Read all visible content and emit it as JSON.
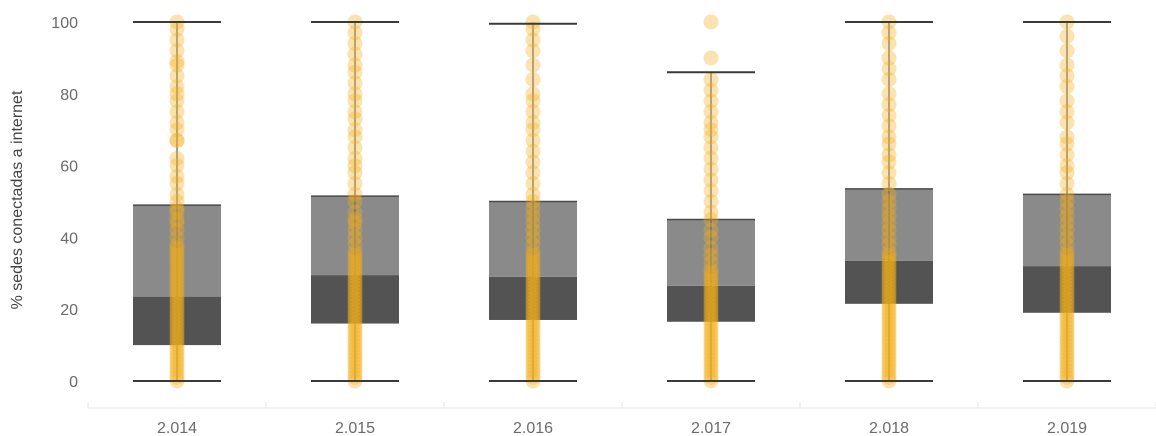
{
  "chart_data": {
    "type": "boxplot",
    "title": "",
    "xlabel": "",
    "ylabel": "% sedes conectadas a internet",
    "ylim": [
      0,
      100
    ],
    "yticks": [
      0,
      20,
      40,
      60,
      80,
      100
    ],
    "grid": false,
    "legend": "none",
    "colors": {
      "points": "#f2b01e",
      "upper_box": "#8a8a8a",
      "lower_box": "#535353",
      "whisker": "#3a3a3a",
      "axis_line": "#e6e6e6"
    },
    "categories": [
      "2.014",
      "2.015",
      "2.016",
      "2.017",
      "2.018",
      "2.019"
    ],
    "boxes": [
      {
        "category": "2.014",
        "whisker_low": 0,
        "q1": 10,
        "median": 23.5,
        "q3": 49,
        "whisker_high": 100
      },
      {
        "category": "2.015",
        "whisker_low": 0,
        "q1": 16,
        "median": 29.5,
        "q3": 51.5,
        "whisker_high": 100
      },
      {
        "category": "2.016",
        "whisker_low": 0,
        "q1": 17,
        "median": 29,
        "q3": 50,
        "whisker_high": 99.5
      },
      {
        "category": "2.017",
        "whisker_low": 0,
        "q1": 16.5,
        "median": 26.5,
        "q3": 45,
        "whisker_high": 86
      },
      {
        "category": "2.018",
        "whisker_low": 0,
        "q1": 21.5,
        "median": 33.5,
        "q3": 53.5,
        "whisker_high": 100
      },
      {
        "category": "2.019",
        "whisker_low": 0,
        "q1": 19,
        "median": 32,
        "q3": 52,
        "whisker_high": 100
      }
    ],
    "points": [
      [
        0,
        1,
        2,
        3,
        4,
        5,
        6,
        7,
        8,
        9,
        10,
        11,
        12,
        13,
        14,
        15,
        16,
        17,
        18,
        19,
        20,
        21,
        22,
        23,
        24,
        25,
        26,
        27,
        28,
        29,
        30,
        31,
        32,
        33,
        34,
        35,
        36,
        37,
        38,
        40,
        42,
        44,
        45,
        47,
        48,
        50,
        52,
        55,
        57,
        60,
        62,
        67,
        67,
        70,
        72,
        75,
        78,
        80,
        82,
        85,
        88,
        89,
        92,
        95,
        98,
        100
      ],
      [
        0,
        1,
        2,
        3,
        4,
        5,
        6,
        7,
        8,
        9,
        10,
        11,
        12,
        13,
        14,
        15,
        16,
        17,
        18,
        19,
        20,
        21,
        22,
        23,
        24,
        25,
        26,
        27,
        28,
        29,
        30,
        31,
        32,
        33,
        34,
        35,
        36,
        38,
        40,
        42,
        44,
        45,
        47,
        50,
        52,
        55,
        58,
        60,
        62,
        65,
        68,
        70,
        73,
        75,
        78,
        80,
        83,
        86,
        88,
        91,
        94,
        97,
        100
      ],
      [
        0,
        1,
        2,
        3,
        4,
        5,
        6,
        7,
        8,
        9,
        10,
        11,
        12,
        13,
        14,
        15,
        16,
        17,
        18,
        19,
        20,
        21,
        22,
        23,
        24,
        25,
        26,
        27,
        28,
        29,
        30,
        31,
        32,
        33,
        34,
        35,
        36,
        38,
        40,
        42,
        44,
        46,
        48,
        50,
        52,
        55,
        58,
        61,
        64,
        67,
        70,
        72,
        75,
        78,
        80,
        84,
        88,
        92,
        95,
        98,
        100
      ],
      [
        0,
        1,
        2,
        3,
        4,
        5,
        6,
        7,
        8,
        9,
        10,
        11,
        12,
        13,
        14,
        15,
        16,
        17,
        18,
        19,
        20,
        21,
        22,
        23,
        24,
        25,
        26,
        27,
        28,
        29,
        30,
        31,
        33,
        35,
        37,
        40,
        42,
        45,
        47,
        50,
        53,
        56,
        59,
        62,
        65,
        68,
        70,
        72,
        75,
        78,
        81,
        84,
        90,
        100
      ],
      [
        0,
        1,
        2,
        3,
        4,
        5,
        6,
        7,
        8,
        9,
        10,
        11,
        12,
        13,
        14,
        15,
        16,
        17,
        18,
        19,
        20,
        21,
        22,
        23,
        24,
        25,
        26,
        27,
        28,
        29,
        30,
        31,
        32,
        33,
        34,
        35,
        36,
        38,
        40,
        42,
        44,
        46,
        48,
        50,
        52,
        55,
        58,
        61,
        63,
        66,
        68,
        71,
        74,
        77,
        80,
        84,
        87,
        90,
        94,
        97,
        100
      ],
      [
        0,
        1,
        2,
        3,
        4,
        5,
        6,
        7,
        8,
        9,
        10,
        11,
        12,
        13,
        14,
        15,
        16,
        17,
        18,
        19,
        20,
        21,
        22,
        23,
        24,
        25,
        26,
        27,
        28,
        29,
        30,
        31,
        32,
        33,
        34,
        35,
        36,
        38,
        40,
        42,
        44,
        46,
        48,
        50,
        52,
        55,
        58,
        60,
        63,
        66,
        68,
        72,
        75,
        78,
        82,
        85,
        88,
        92,
        96,
        100
      ]
    ]
  }
}
